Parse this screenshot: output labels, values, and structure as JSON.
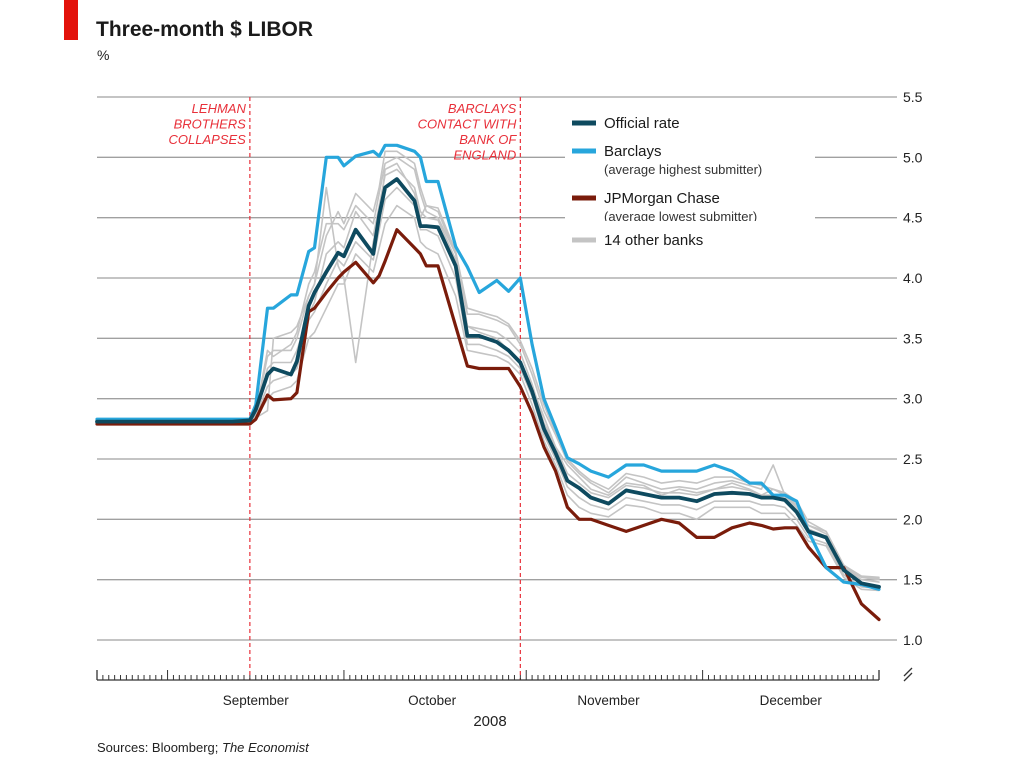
{
  "header": {
    "title": "Three-month $ LIBOR",
    "unit": "%"
  },
  "footer": {
    "source_prefix": "Sources: Bloomberg; ",
    "source_italic": "The Economist"
  },
  "colors": {
    "accent": "#e3120b",
    "official": "#0e4a5f",
    "barclays": "#27a6dc",
    "jpmorgan": "#7a1c0b",
    "others": "#c4c4c4",
    "grid": "#a0a0a0",
    "annotation": "#e8303a"
  },
  "chart_data": {
    "type": "line",
    "title": "Three-month $ LIBOR",
    "ylabel": "%",
    "xlabel": "2008",
    "ylim": [
      1.0,
      5.5
    ],
    "yticks": [
      "5.5",
      "5.0",
      "4.5",
      "4.0",
      "3.5",
      "3.0",
      "2.5",
      "2.0",
      "1.5",
      "1.0"
    ],
    "x_month_labels": [
      "September",
      "October",
      "November",
      "December"
    ],
    "x_year_label": "2008",
    "grid": true,
    "legend_placement": "top-right",
    "legend": [
      {
        "key": "official",
        "label": "Official rate",
        "note": ""
      },
      {
        "key": "barclays",
        "label": "Barclays",
        "note": "(average highest submitter)"
      },
      {
        "key": "jpmorgan",
        "label": "JPMorgan Chase",
        "note": "(average lowest submitter)"
      },
      {
        "key": "others",
        "label": "14 other banks",
        "note": ""
      }
    ],
    "annotations": [
      {
        "lines": [
          "LEHMAN",
          "BROTHERS",
          "COLLAPSES"
        ],
        "date": "2008-09-15"
      },
      {
        "lines": [
          "BARCLAYS",
          "CONTACT WITH",
          "BANK OF",
          "ENGLAND"
        ],
        "date": "2008-10-31"
      }
    ],
    "x_start": "2008-08-20",
    "x_end": "2008-12-31",
    "x": [
      "2008-08-20",
      "2008-08-25",
      "2008-08-30",
      "2008-09-04",
      "2008-09-09",
      "2008-09-12",
      "2008-09-15",
      "2008-09-16",
      "2008-09-18",
      "2008-09-19",
      "2008-09-22",
      "2008-09-23",
      "2008-09-25",
      "2008-09-26",
      "2008-09-28",
      "2008-09-30",
      "2008-10-01",
      "2008-10-03",
      "2008-10-06",
      "2008-10-07",
      "2008-10-08",
      "2008-10-10",
      "2008-10-13",
      "2008-10-14",
      "2008-10-15",
      "2008-10-17",
      "2008-10-20",
      "2008-10-22",
      "2008-10-24",
      "2008-10-27",
      "2008-10-29",
      "2008-10-31",
      "2008-11-02",
      "2008-11-04",
      "2008-11-06",
      "2008-11-08",
      "2008-11-10",
      "2008-11-12",
      "2008-11-15",
      "2008-11-18",
      "2008-11-21",
      "2008-11-24",
      "2008-11-27",
      "2008-11-30",
      "2008-12-03",
      "2008-12-06",
      "2008-12-09",
      "2008-12-11",
      "2008-12-13",
      "2008-12-15",
      "2008-12-17",
      "2008-12-19",
      "2008-12-22",
      "2008-12-25",
      "2008-12-28",
      "2008-12-31"
    ],
    "series": [
      {
        "key": "barclays",
        "name": "Barclays",
        "values": [
          2.83,
          2.83,
          2.83,
          2.83,
          2.83,
          2.83,
          2.83,
          2.95,
          3.75,
          3.75,
          3.86,
          3.86,
          4.22,
          4.25,
          5.0,
          5.0,
          4.93,
          5.01,
          5.05,
          5.01,
          5.1,
          5.1,
          5.05,
          5.0,
          4.8,
          4.8,
          4.26,
          4.09,
          3.88,
          3.98,
          3.89,
          4.0,
          3.45,
          3.0,
          2.76,
          2.51,
          2.46,
          2.4,
          2.35,
          2.45,
          2.45,
          2.4,
          2.4,
          2.4,
          2.45,
          2.4,
          2.3,
          2.3,
          2.2,
          2.2,
          2.15,
          1.9,
          1.6,
          1.48,
          1.46,
          1.42
        ]
      },
      {
        "key": "official",
        "name": "Official rate",
        "values": [
          2.81,
          2.81,
          2.81,
          2.81,
          2.81,
          2.81,
          2.82,
          2.91,
          3.2,
          3.25,
          3.2,
          3.31,
          3.77,
          3.88,
          4.05,
          4.21,
          4.18,
          4.4,
          4.2,
          4.52,
          4.75,
          4.82,
          4.64,
          4.43,
          4.43,
          4.42,
          4.1,
          3.52,
          3.52,
          3.47,
          3.4,
          3.3,
          3.06,
          2.75,
          2.55,
          2.32,
          2.26,
          2.18,
          2.13,
          2.24,
          2.21,
          2.18,
          2.18,
          2.15,
          2.21,
          2.22,
          2.21,
          2.18,
          2.18,
          2.16,
          2.06,
          1.9,
          1.85,
          1.58,
          1.47,
          1.44
        ]
      },
      {
        "key": "jpmorgan",
        "name": "JPMorgan Chase",
        "values": [
          2.79,
          2.79,
          2.79,
          2.79,
          2.79,
          2.79,
          2.79,
          2.83,
          3.03,
          2.99,
          3.0,
          3.05,
          3.72,
          3.75,
          3.88,
          4.0,
          4.05,
          4.13,
          3.96,
          4.02,
          4.14,
          4.4,
          4.25,
          4.2,
          4.1,
          4.1,
          3.6,
          3.27,
          3.25,
          3.25,
          3.25,
          3.1,
          2.88,
          2.6,
          2.4,
          2.1,
          2.0,
          2.0,
          1.95,
          1.9,
          1.95,
          2.0,
          1.97,
          1.85,
          1.85,
          1.93,
          1.97,
          1.95,
          1.92,
          1.93,
          1.93,
          1.77,
          1.6,
          1.6,
          1.3,
          1.17
        ]
      },
      {
        "key": "other",
        "name": "",
        "values": [
          2.82,
          2.82,
          2.82,
          2.82,
          2.82,
          2.82,
          2.8,
          2.84,
          2.9,
          3.5,
          3.55,
          3.6,
          3.85,
          3.95,
          4.75,
          4.1,
          4.0,
          3.3,
          4.3,
          4.5,
          4.9,
          4.95,
          4.7,
          4.5,
          4.6,
          4.55,
          4.2,
          3.6,
          3.55,
          3.5,
          3.4,
          3.3,
          3.1,
          2.85,
          2.6,
          2.45,
          2.35,
          2.25,
          2.2,
          2.3,
          2.28,
          2.2,
          2.25,
          2.22,
          2.25,
          2.3,
          2.25,
          2.2,
          2.25,
          2.2,
          2.1,
          1.95,
          1.9,
          1.62,
          1.52,
          1.5
        ]
      },
      {
        "key": "other",
        "name": "",
        "values": [
          2.82,
          2.82,
          2.82,
          2.82,
          2.82,
          2.82,
          2.82,
          2.88,
          3.4,
          3.35,
          3.45,
          3.55,
          3.95,
          4.05,
          4.45,
          4.45,
          4.4,
          4.6,
          4.45,
          4.7,
          4.95,
          5.0,
          4.9,
          4.7,
          4.55,
          4.5,
          4.2,
          3.7,
          3.7,
          3.65,
          3.6,
          3.45,
          3.2,
          2.9,
          2.7,
          2.48,
          2.38,
          2.3,
          2.22,
          2.35,
          2.3,
          2.25,
          2.27,
          2.25,
          2.3,
          2.32,
          2.28,
          2.25,
          2.45,
          2.2,
          2.12,
          1.95,
          1.88,
          1.6,
          1.52,
          1.51
        ]
      },
      {
        "key": "other",
        "name": "",
        "values": [
          2.81,
          2.81,
          2.81,
          2.81,
          2.81,
          2.81,
          2.81,
          2.86,
          3.1,
          3.15,
          3.2,
          3.25,
          3.65,
          3.72,
          3.95,
          4.15,
          4.1,
          4.3,
          4.15,
          4.4,
          4.65,
          4.75,
          4.6,
          4.4,
          4.4,
          4.35,
          4.0,
          3.45,
          3.45,
          3.4,
          3.35,
          3.25,
          3.02,
          2.7,
          2.5,
          2.27,
          2.18,
          2.12,
          2.08,
          2.18,
          2.15,
          2.12,
          2.12,
          2.08,
          2.15,
          2.15,
          2.15,
          2.12,
          2.12,
          2.1,
          2.0,
          1.85,
          1.8,
          1.54,
          1.44,
          1.43
        ]
      },
      {
        "key": "other",
        "name": "",
        "values": [
          2.81,
          2.81,
          2.81,
          2.81,
          2.81,
          2.81,
          2.81,
          2.86,
          3.25,
          3.3,
          3.3,
          3.4,
          3.7,
          3.8,
          4.2,
          4.3,
          4.25,
          4.55,
          4.35,
          4.6,
          4.85,
          4.9,
          4.75,
          4.55,
          4.5,
          4.48,
          4.15,
          3.6,
          3.58,
          3.55,
          3.48,
          3.38,
          3.12,
          2.8,
          2.6,
          2.38,
          2.3,
          2.22,
          2.18,
          2.28,
          2.26,
          2.22,
          2.22,
          2.2,
          2.25,
          2.27,
          2.24,
          2.2,
          2.2,
          2.18,
          2.08,
          1.92,
          1.86,
          1.6,
          1.5,
          1.48
        ]
      },
      {
        "key": "other",
        "name": "",
        "values": [
          2.8,
          2.8,
          2.8,
          2.8,
          2.8,
          2.8,
          2.8,
          2.84,
          3.0,
          3.05,
          3.1,
          3.15,
          3.5,
          3.55,
          3.75,
          3.95,
          3.95,
          4.2,
          4.05,
          4.25,
          4.45,
          4.6,
          4.5,
          4.3,
          4.25,
          4.2,
          3.85,
          3.4,
          3.38,
          3.35,
          3.3,
          3.2,
          2.95,
          2.65,
          2.45,
          2.2,
          2.1,
          2.05,
          2.02,
          2.12,
          2.1,
          2.05,
          2.05,
          2.0,
          2.1,
          2.1,
          2.1,
          2.05,
          2.05,
          2.05,
          1.95,
          1.82,
          1.78,
          1.52,
          1.42,
          1.41
        ]
      },
      {
        "key": "other",
        "name": "",
        "values": [
          2.82,
          2.82,
          2.82,
          2.82,
          2.82,
          2.82,
          2.82,
          2.87,
          3.35,
          3.4,
          3.4,
          3.5,
          3.85,
          3.95,
          4.35,
          4.55,
          4.45,
          4.7,
          4.55,
          4.75,
          5.05,
          5.05,
          4.95,
          4.75,
          4.6,
          4.58,
          4.22,
          3.75,
          3.72,
          3.68,
          3.62,
          3.48,
          3.25,
          2.95,
          2.72,
          2.5,
          2.4,
          2.32,
          2.25,
          2.38,
          2.35,
          2.3,
          2.32,
          2.3,
          2.35,
          2.35,
          2.3,
          2.28,
          2.25,
          2.22,
          2.15,
          1.98,
          1.9,
          1.62,
          1.53,
          1.52
        ]
      }
    ]
  }
}
